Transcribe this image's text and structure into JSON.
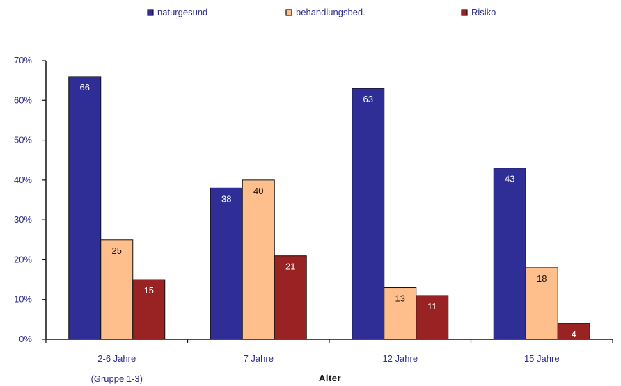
{
  "chart_data": {
    "type": "bar",
    "categories": [
      "2-6 Jahre",
      "7 Jahre",
      "12 Jahre",
      "15 Jahre"
    ],
    "category_sublabels": [
      "(Gruppe 1-3)",
      "",
      "",
      ""
    ],
    "series": [
      {
        "name": "naturgesund",
        "color": "#2e2e96",
        "label_color": "#ffffff",
        "values": [
          66,
          38,
          63,
          43
        ]
      },
      {
        "name": "behandlungsbed.",
        "color": "#ffbf8c",
        "label_color": "#111111",
        "values": [
          25,
          40,
          13,
          18
        ]
      },
      {
        "name": "Risiko",
        "color": "#992222",
        "label_color": "#ffffff",
        "values": [
          15,
          21,
          11,
          4
        ]
      }
    ],
    "xlabel": "Alter",
    "ylabel": "",
    "ylim": [
      0,
      70
    ],
    "yticks": [
      0,
      10,
      20,
      30,
      40,
      50,
      60,
      70
    ],
    "ytick_labels": [
      "0%",
      "10%",
      "20%",
      "30%",
      "40%",
      "50%",
      "60%",
      "70%"
    ],
    "grid": false,
    "legend_position": "top"
  }
}
